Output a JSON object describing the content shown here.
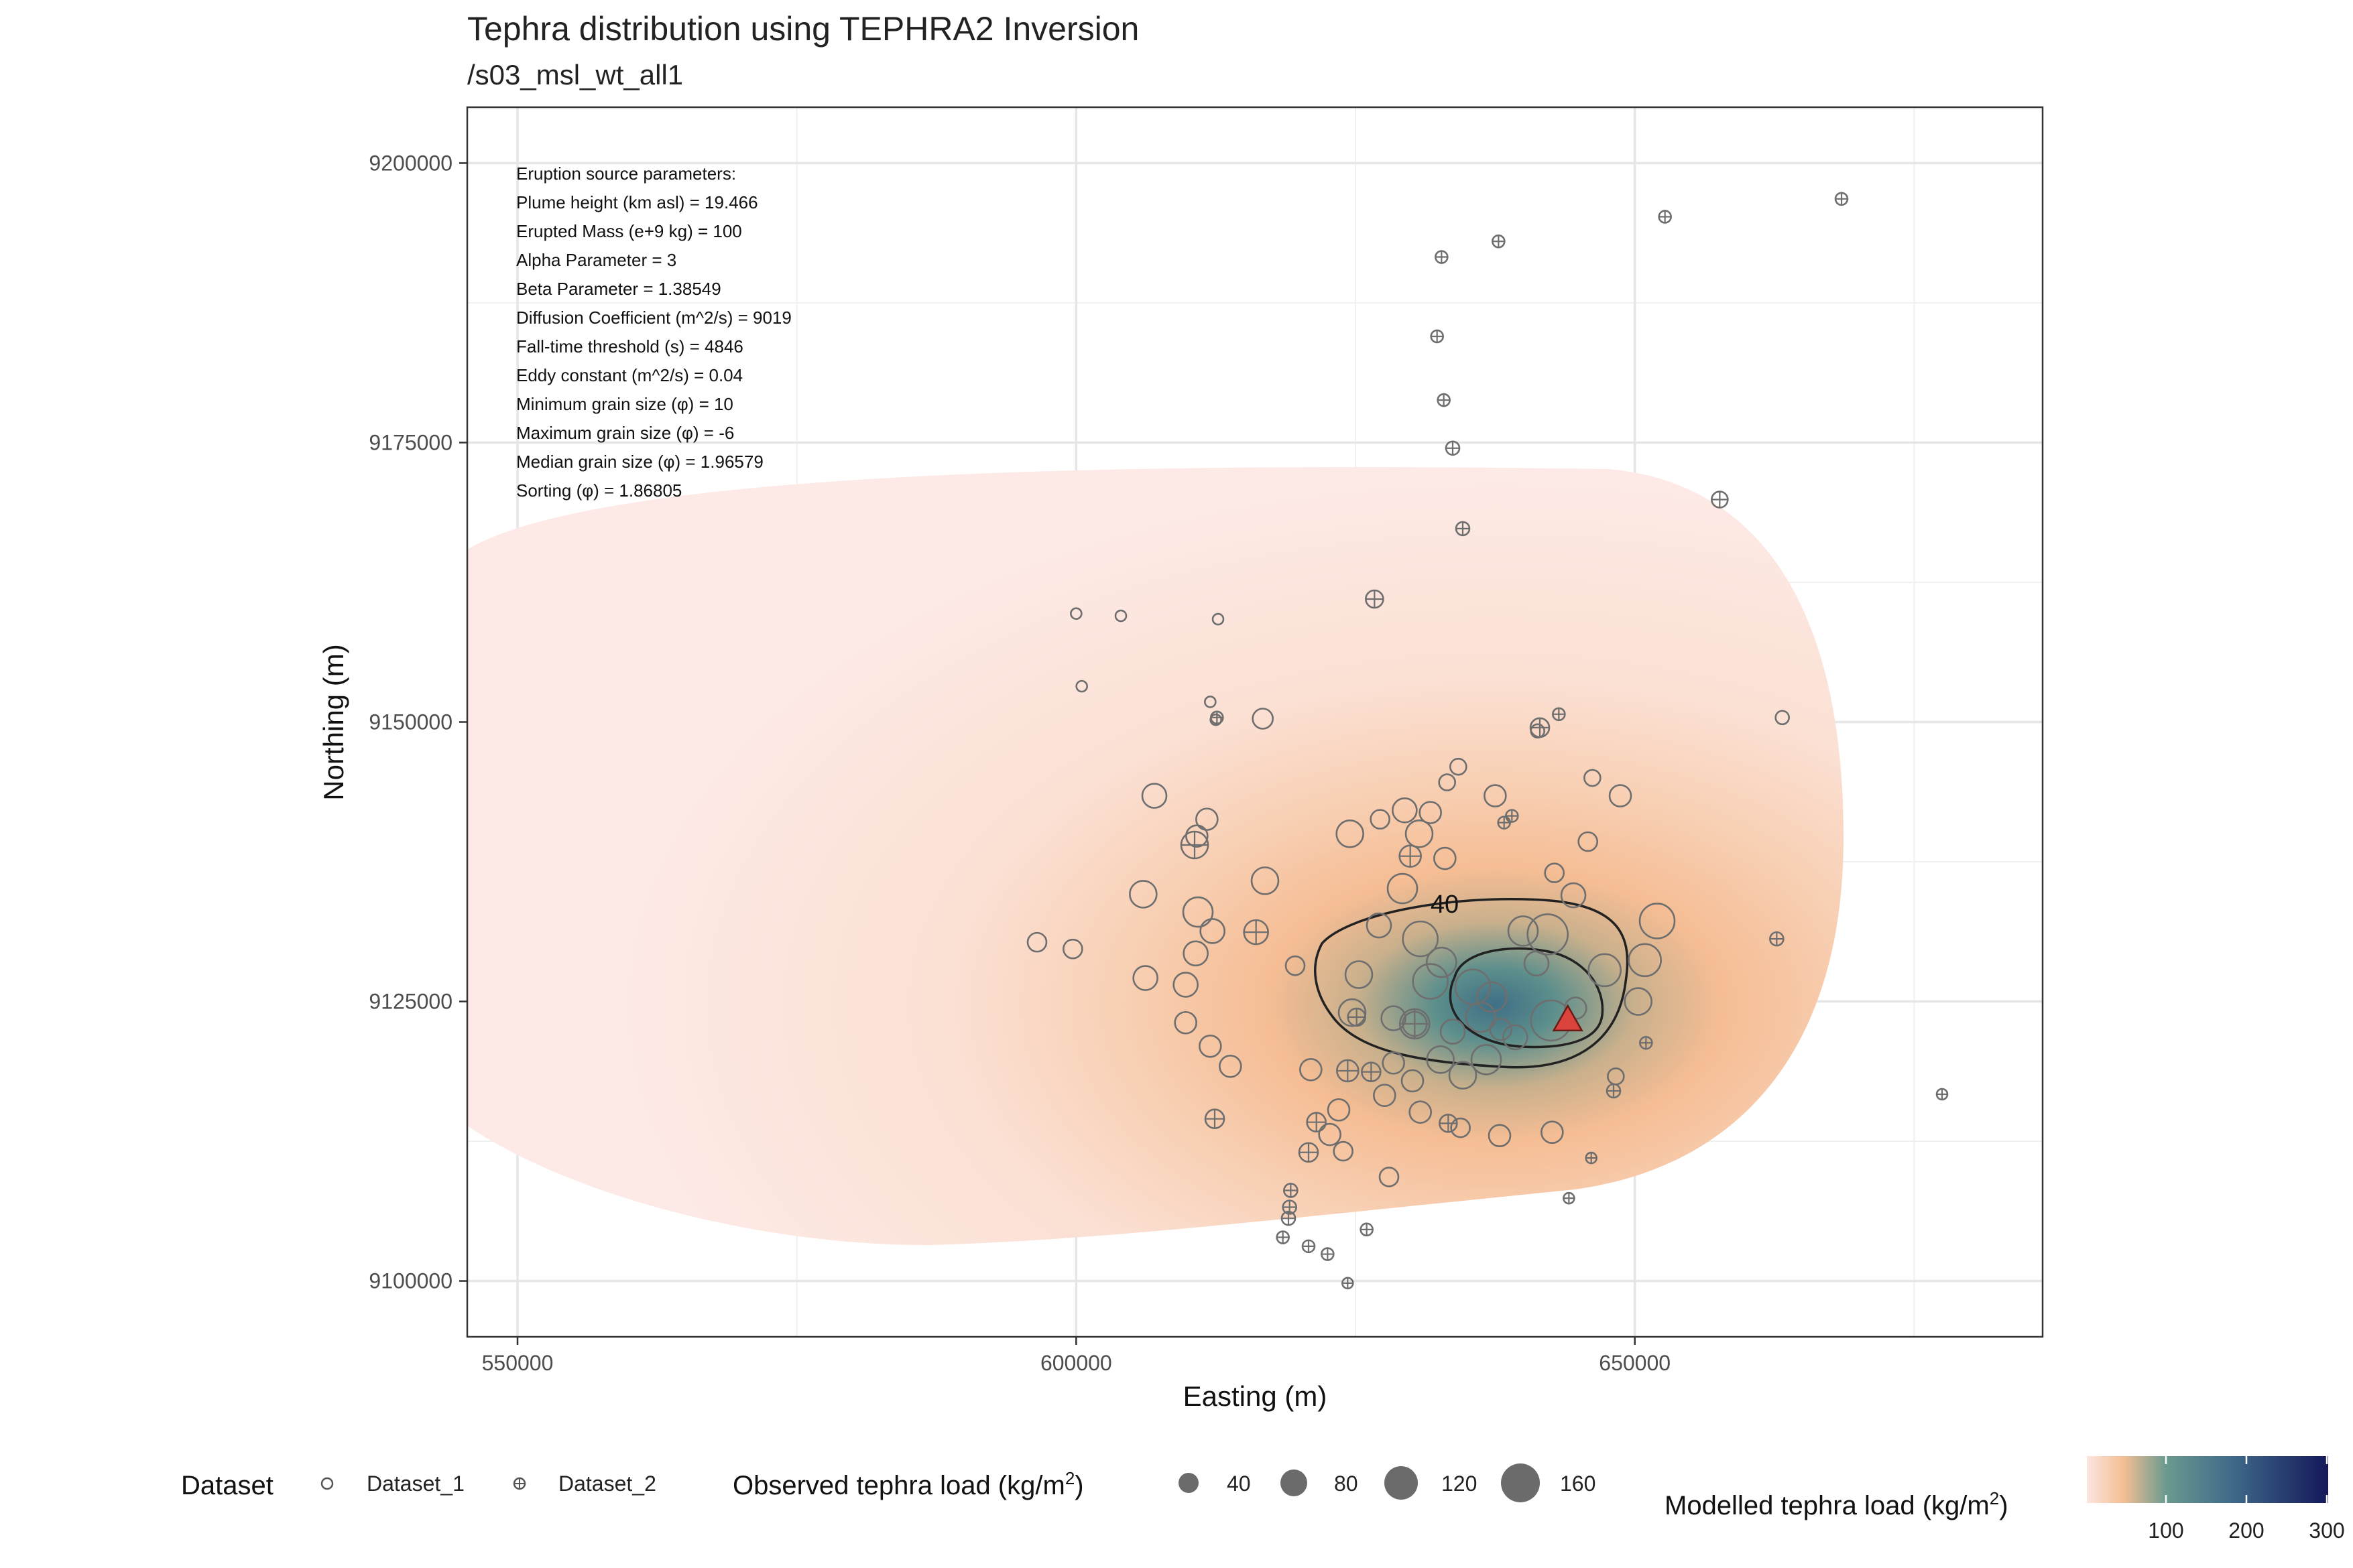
{
  "title": "Tephra distribution using TEPHRA2 Inversion",
  "subtitle": "/s03_msl_wt_all1",
  "chart_data": {
    "type": "scatter",
    "xlabel": "Easting (m)",
    "ylabel": "Northing (m)",
    "xlim": [
      545500,
      686500
    ],
    "ylim": [
      9095000,
      9205000
    ],
    "x_ticks": [
      550000,
      600000,
      650000
    ],
    "x_tick_labels": [
      "550000",
      "600000",
      "650000"
    ],
    "y_ticks": [
      9100000,
      9125000,
      9150000,
      9175000,
      9200000
    ],
    "y_tick_labels": [
      "9100000",
      "9125000",
      "9150000",
      "9175000",
      "9200000"
    ],
    "grid": true,
    "annotation_lines": [
      "Eruption source parameters:",
      "Plume height (km asl) = 19.466",
      "Erupted Mass (e+9 kg) = 100",
      "Alpha Parameter = 3",
      "Beta Parameter = 1.38549",
      "Diffusion Coefficient (m^2/s) = 9019",
      "Fall-time threshold (s) = 4846",
      "Eddy constant (m^2/s) = 0.04",
      "Minimum grain size (φ) = 10",
      "Maximum grain size (φ) = -6",
      "Median grain size (φ) = 1.96579",
      "Sorting (φ) = 1.86805"
    ],
    "contour_label": "40",
    "vent": {
      "x": 644000,
      "y": 9123300,
      "color": "#d9453d"
    },
    "colors": {
      "fill_low": "#fbe5e0",
      "fill_mid": "#f5bf95",
      "fill_high": "#5f8f8c",
      "fill_max": "#14185a",
      "point_stroke": "#6e6e6e",
      "contour": "#222222"
    },
    "legend": {
      "dataset_title": "Dataset",
      "dataset_items": [
        "Dataset_1",
        "Dataset_2"
      ],
      "size_title": "Observed tephra load (kg/m",
      "size_title_sup": "2",
      "size_title_close": ")",
      "size_values": [
        40,
        80,
        120,
        160
      ],
      "color_title": "Modelled tephra load (kg/m",
      "color_title_sup": "2",
      "color_title_close": ")",
      "color_ticks": [
        100,
        200,
        300
      ]
    },
    "series": [
      {
        "name": "Dataset_1",
        "points": [
          [
            600000,
            9159700,
            8
          ],
          [
            604000,
            9159500,
            8
          ],
          [
            612700,
            9159200,
            8
          ],
          [
            600500,
            9153200,
            8
          ],
          [
            612000,
            9151800,
            8
          ],
          [
            612500,
            9150200,
            8
          ],
          [
            616700,
            9150300,
            15
          ],
          [
            663200,
            9150400,
            10
          ],
          [
            641300,
            9149200,
            10
          ],
          [
            634200,
            9146000,
            12
          ],
          [
            633200,
            9144600,
            12
          ],
          [
            646200,
            9145000,
            12
          ],
          [
            648700,
            9143400,
            16
          ],
          [
            637500,
            9143400,
            16
          ],
          [
            607000,
            9143400,
            18
          ],
          [
            611700,
            9141300,
            16
          ],
          [
            631700,
            9141900,
            16
          ],
          [
            629400,
            9142100,
            18
          ],
          [
            627200,
            9141300,
            14
          ],
          [
            610800,
            9139800,
            16
          ],
          [
            624500,
            9140000,
            20
          ],
          [
            630700,
            9140000,
            20
          ],
          [
            645800,
            9139300,
            14
          ],
          [
            616900,
            9135800,
            20
          ],
          [
            606000,
            9134600,
            20
          ],
          [
            629200,
            9135100,
            22
          ],
          [
            633000,
            9137800,
            16
          ],
          [
            642800,
            9136500,
            14
          ],
          [
            644500,
            9134500,
            18
          ],
          [
            610900,
            9133000,
            22
          ],
          [
            612200,
            9131300,
            18
          ],
          [
            627100,
            9131800,
            18
          ],
          [
            630800,
            9130600,
            26
          ],
          [
            640000,
            9131300,
            22
          ],
          [
            642200,
            9131000,
            30
          ],
          [
            652000,
            9132200,
            26
          ],
          [
            596500,
            9130300,
            14
          ],
          [
            599700,
            9129700,
            14
          ],
          [
            610700,
            9129300,
            18
          ],
          [
            632700,
            9128500,
            22
          ],
          [
            641200,
            9128400,
            18
          ],
          [
            647300,
            9127800,
            24
          ],
          [
            650900,
            9128700,
            24
          ],
          [
            619600,
            9128200,
            14
          ],
          [
            631700,
            9126800,
            26
          ],
          [
            625300,
            9127400,
            20
          ],
          [
            606200,
            9127100,
            18
          ],
          [
            609800,
            9126500,
            18
          ],
          [
            635500,
            9126300,
            26
          ],
          [
            637200,
            9125400,
            22
          ],
          [
            644700,
            9124400,
            16
          ],
          [
            650300,
            9125000,
            20
          ],
          [
            624700,
            9124000,
            20
          ],
          [
            628400,
            9123500,
            18
          ],
          [
            630300,
            9123000,
            18
          ],
          [
            633700,
            9122300,
            18
          ],
          [
            636200,
            9123600,
            22
          ],
          [
            642500,
            9123300,
            30
          ],
          [
            638000,
            9122500,
            16
          ],
          [
            639300,
            9121800,
            18
          ],
          [
            609800,
            9123100,
            16
          ],
          [
            612000,
            9121000,
            16
          ],
          [
            613800,
            9119200,
            16
          ],
          [
            621000,
            9118900,
            16
          ],
          [
            628400,
            9119500,
            16
          ],
          [
            632600,
            9119800,
            20
          ],
          [
            636700,
            9119800,
            22
          ],
          [
            630100,
            9117900,
            16
          ],
          [
            634600,
            9118400,
            20
          ],
          [
            648300,
            9118300,
            12
          ],
          [
            627600,
            9116600,
            16
          ],
          [
            623500,
            9115300,
            16
          ],
          [
            630800,
            9115100,
            16
          ],
          [
            634400,
            9113700,
            14
          ],
          [
            637900,
            9113000,
            16
          ],
          [
            642600,
            9113300,
            16
          ],
          [
            622700,
            9113100,
            16
          ],
          [
            623900,
            9111600,
            14
          ],
          [
            628000,
            9109300,
            14
          ]
        ]
      },
      {
        "name": "Dataset_2",
        "points": [
          [
            668500,
            9196800,
            9
          ],
          [
            652700,
            9195200,
            9
          ],
          [
            637800,
            9193000,
            9
          ],
          [
            632700,
            9191600,
            9
          ],
          [
            632300,
            9184500,
            9
          ],
          [
            632900,
            9178800,
            9
          ],
          [
            633700,
            9174500,
            10
          ],
          [
            657600,
            9169900,
            12
          ],
          [
            634600,
            9167300,
            10
          ],
          [
            626700,
            9161000,
            13
          ],
          [
            643200,
            9150700,
            9
          ],
          [
            638300,
            9141000,
            9
          ],
          [
            639000,
            9141600,
            9
          ],
          [
            616100,
            9131200,
            18
          ],
          [
            610600,
            9139000,
            20
          ],
          [
            629900,
            9138000,
            16
          ],
          [
            625100,
            9123600,
            13
          ],
          [
            630300,
            9123000,
            22
          ],
          [
            626400,
            9118700,
            14
          ],
          [
            624300,
            9118800,
            16
          ],
          [
            633300,
            9114100,
            13
          ],
          [
            612400,
            9114500,
            14
          ],
          [
            621500,
            9114200,
            14
          ],
          [
            620800,
            9111500,
            14
          ],
          [
            648100,
            9117000,
            10
          ],
          [
            651000,
            9121300,
            9
          ],
          [
            662700,
            9130600,
            10
          ],
          [
            677500,
            9116700,
            8
          ],
          [
            646100,
            9111000,
            8
          ],
          [
            644100,
            9107400,
            8
          ],
          [
            619200,
            9108100,
            10
          ],
          [
            619100,
            9106600,
            10
          ],
          [
            619000,
            9105600,
            10
          ],
          [
            618500,
            9103900,
            9
          ],
          [
            620800,
            9103100,
            9
          ],
          [
            622500,
            9102400,
            9
          ],
          [
            626000,
            9104600,
            9
          ],
          [
            624300,
            9099800,
            8
          ],
          [
            641500,
            9149500,
            14
          ],
          [
            612600,
            9150400,
            9
          ]
        ]
      }
    ]
  }
}
